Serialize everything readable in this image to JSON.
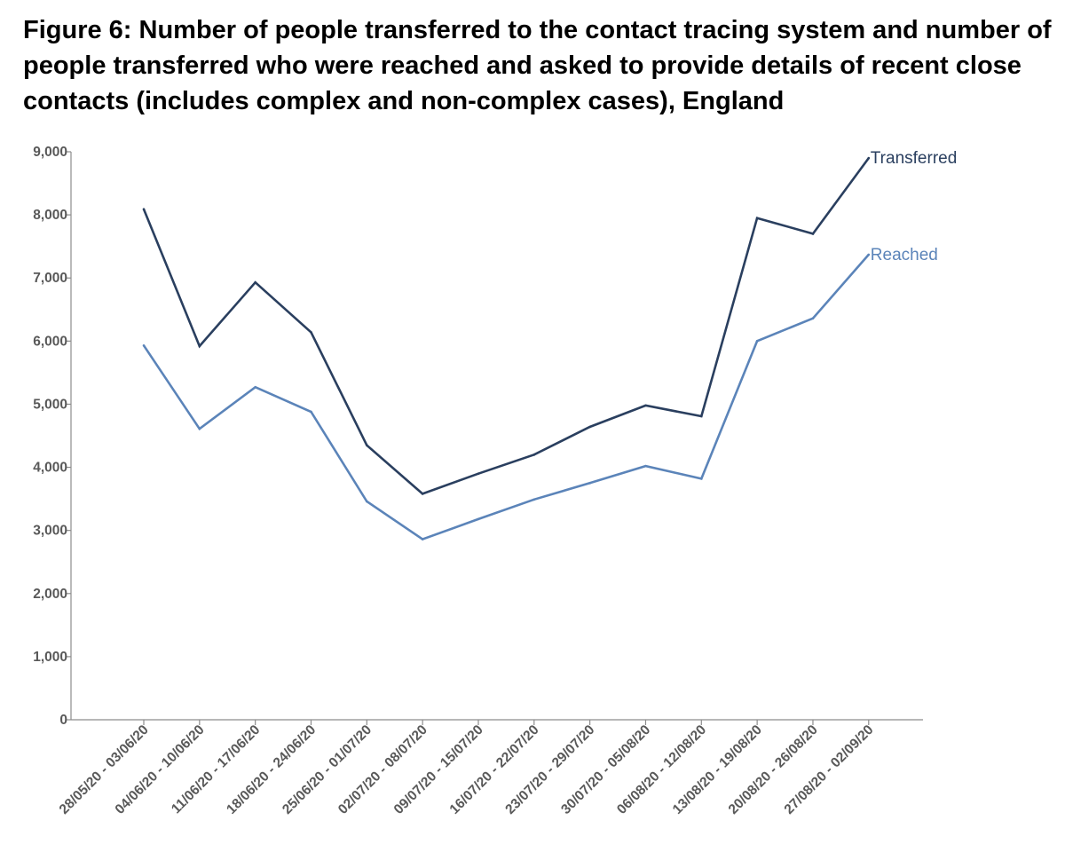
{
  "chart_data": {
    "type": "line",
    "title": "Figure 6: Number of people transferred to the contact tracing system and number of people transferred who were reached and asked to provide details of recent close contacts (includes complex and non-complex cases), England",
    "xlabel": "",
    "ylabel": "",
    "categories": [
      "28/05/20 - 03/06/20",
      "04/06/20 - 10/06/20",
      "11/06/20 - 17/06/20",
      "18/06/20 - 24/06/20",
      "25/06/20 - 01/07/20",
      "02/07/20 - 08/07/20",
      "09/07/20 - 15/07/20",
      "16/07/20 - 22/07/20",
      "23/07/20 - 29/07/20",
      "30/07/20 - 05/08/20",
      "06/08/20 - 12/08/20",
      "13/08/20 - 19/08/20",
      "20/08/20 - 26/08/20",
      "27/08/20 - 02/09/20"
    ],
    "ylim": [
      0,
      9000
    ],
    "yticks": [
      "0",
      "1,000",
      "2,000",
      "3,000",
      "4,000",
      "5,000",
      "6,000",
      "7,000",
      "8,000",
      "9,000"
    ],
    "grid": false,
    "legend": "inline labels at line ends",
    "series": [
      {
        "name": "Transferred",
        "color": "#2a3f5f",
        "values": [
          8090,
          5920,
          6930,
          6140,
          4350,
          3580,
          3900,
          4200,
          4640,
          4980,
          4810,
          7950,
          7700,
          8900
        ]
      },
      {
        "name": "Reached",
        "color": "#5b84b9",
        "values": [
          5930,
          4610,
          5270,
          4880,
          3460,
          2860,
          3180,
          3490,
          3750,
          4020,
          3820,
          6000,
          6360,
          7370
        ]
      }
    ]
  }
}
